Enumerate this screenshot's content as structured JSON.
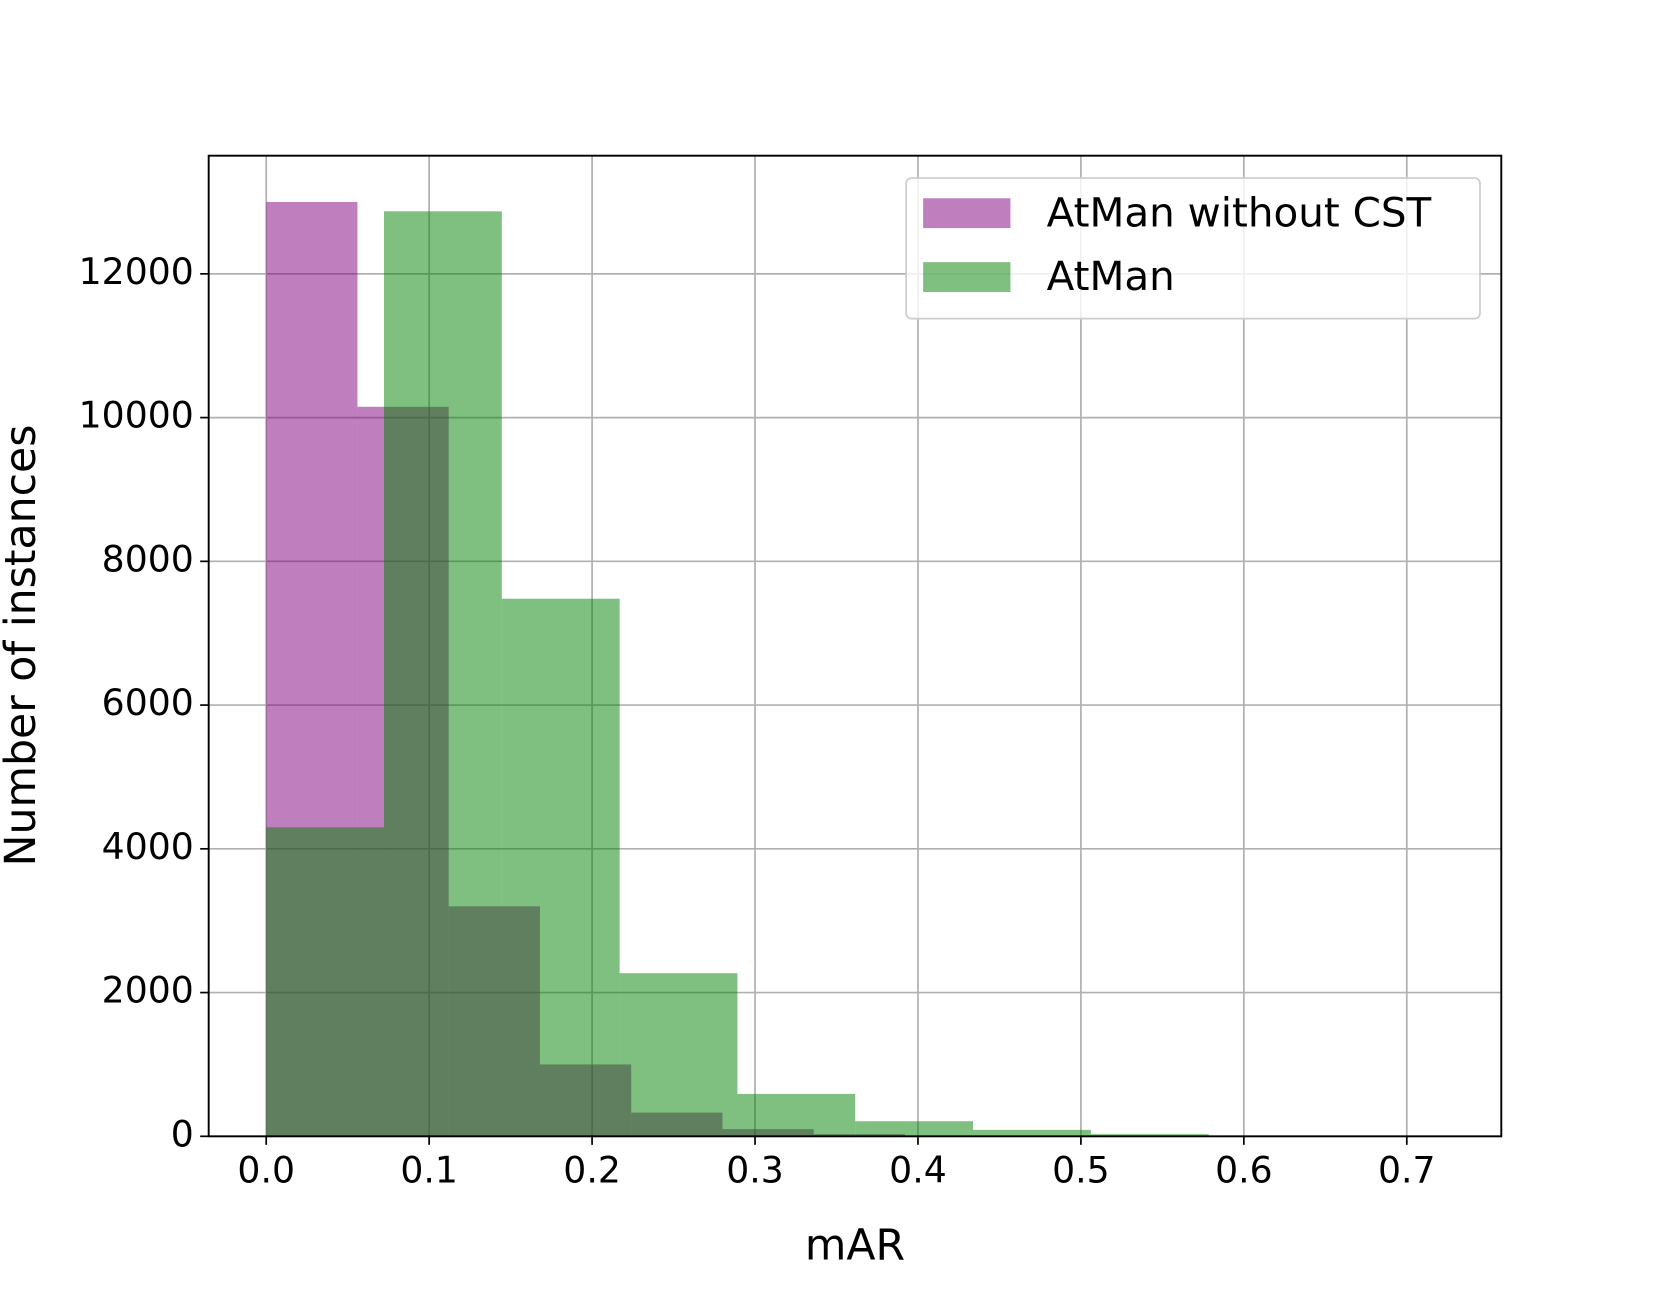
{
  "chart_data": {
    "type": "histogram",
    "x_label": "mAR",
    "y_label": "Number of instances",
    "series": [
      {
        "name": "AtMan without CST",
        "color": "#800080",
        "alpha": 0.5,
        "bins": [
          0,
          0.056,
          0.112,
          0.168,
          0.224,
          0.28,
          0.336,
          0.392,
          0.448,
          0.504,
          0.56
        ],
        "values": [
          13000,
          10150,
          3200,
          1000,
          330,
          100,
          30,
          10,
          0,
          0
        ]
      },
      {
        "name": "AtMan",
        "color": "#008000",
        "alpha": 0.5,
        "bins": [
          0,
          0.0723,
          0.1446,
          0.2169,
          0.2892,
          0.3615,
          0.4338,
          0.5061,
          0.5784,
          0.6507,
          0.723
        ],
        "values": [
          4300,
          12870,
          7480,
          2270,
          590,
          210,
          90,
          30,
          5,
          1
        ]
      }
    ],
    "xlim": [
      -0.0353,
      0.758
    ],
    "ylim": [
      0,
      13644
    ],
    "xticks": [
      {
        "value": 0,
        "label": "0.0"
      },
      0.1,
      0.2,
      0.3,
      0.4,
      0.5,
      0.6,
      0.7
    ],
    "yticks": [
      0,
      2000,
      4000,
      6000,
      8000,
      10000,
      12000
    ],
    "grid": true,
    "legend": "upper right"
  }
}
